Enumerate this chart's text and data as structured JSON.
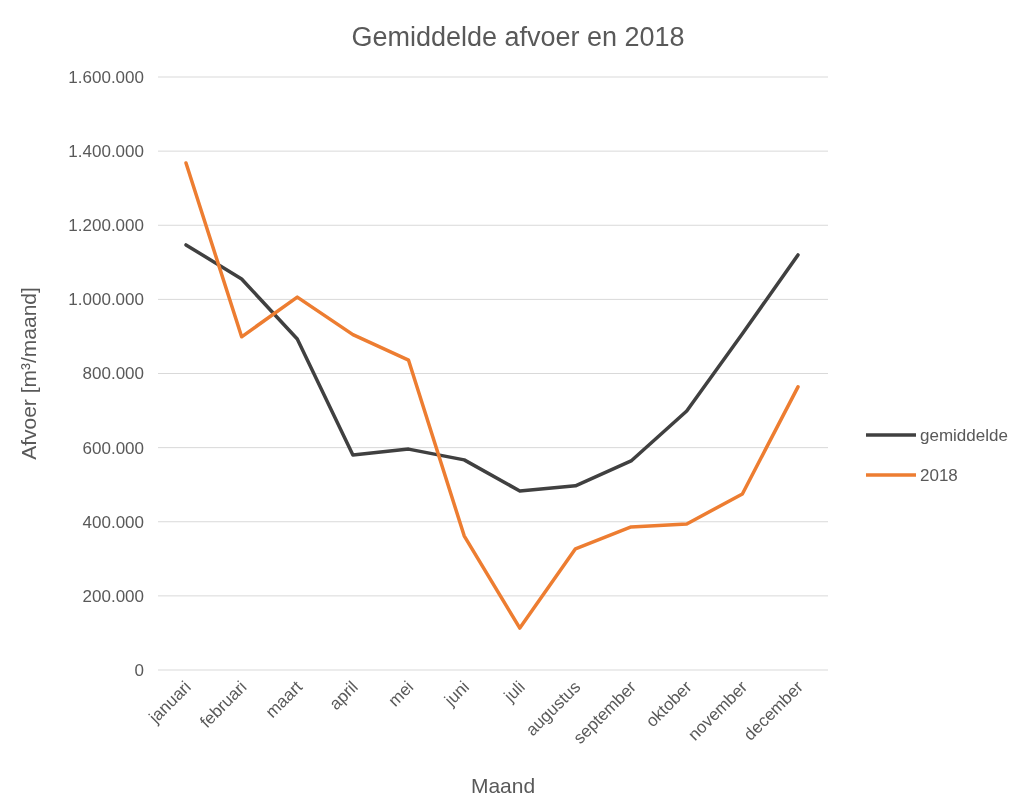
{
  "chart_data": {
    "type": "line",
    "title": "Gemiddelde afvoer en 2018",
    "xlabel": "Maand",
    "ylabel": "Afvoer [m³/maand]",
    "categories": [
      "januari",
      "februari",
      "maart",
      "april",
      "mei",
      "juni",
      "juli",
      "augustus",
      "september",
      "oktober",
      "november",
      "december"
    ],
    "series": [
      {
        "name": "gemiddelde",
        "color": "#404040",
        "values": [
          1147000,
          1055000,
          893000,
          580000,
          596000,
          567000,
          483000,
          497000,
          564000,
          699000,
          907000,
          1120000
        ]
      },
      {
        "name": "2018",
        "color": "#ed7d31",
        "values": [
          1368000,
          899000,
          1006000,
          905000,
          836000,
          362000,
          113000,
          327000,
          386000,
          394000,
          475000,
          764000
        ]
      }
    ],
    "ylim": [
      0,
      1600000
    ],
    "yticks": [
      0,
      {
        "value": 200000,
        "label": "200.000"
      },
      {
        "value": 400000,
        "label": "400.000"
      },
      {
        "value": 600000,
        "label": "600.000"
      },
      {
        "value": 800000,
        "label": "800.000"
      },
      {
        "value": 1000000,
        "label": "1.000.000"
      },
      {
        "value": 1200000,
        "label": "1.200.000"
      },
      {
        "value": 1400000,
        "label": "1.400.000"
      },
      {
        "value": 1600000,
        "label": "1.600.000"
      }
    ],
    "grid": "y",
    "legend": "right"
  }
}
